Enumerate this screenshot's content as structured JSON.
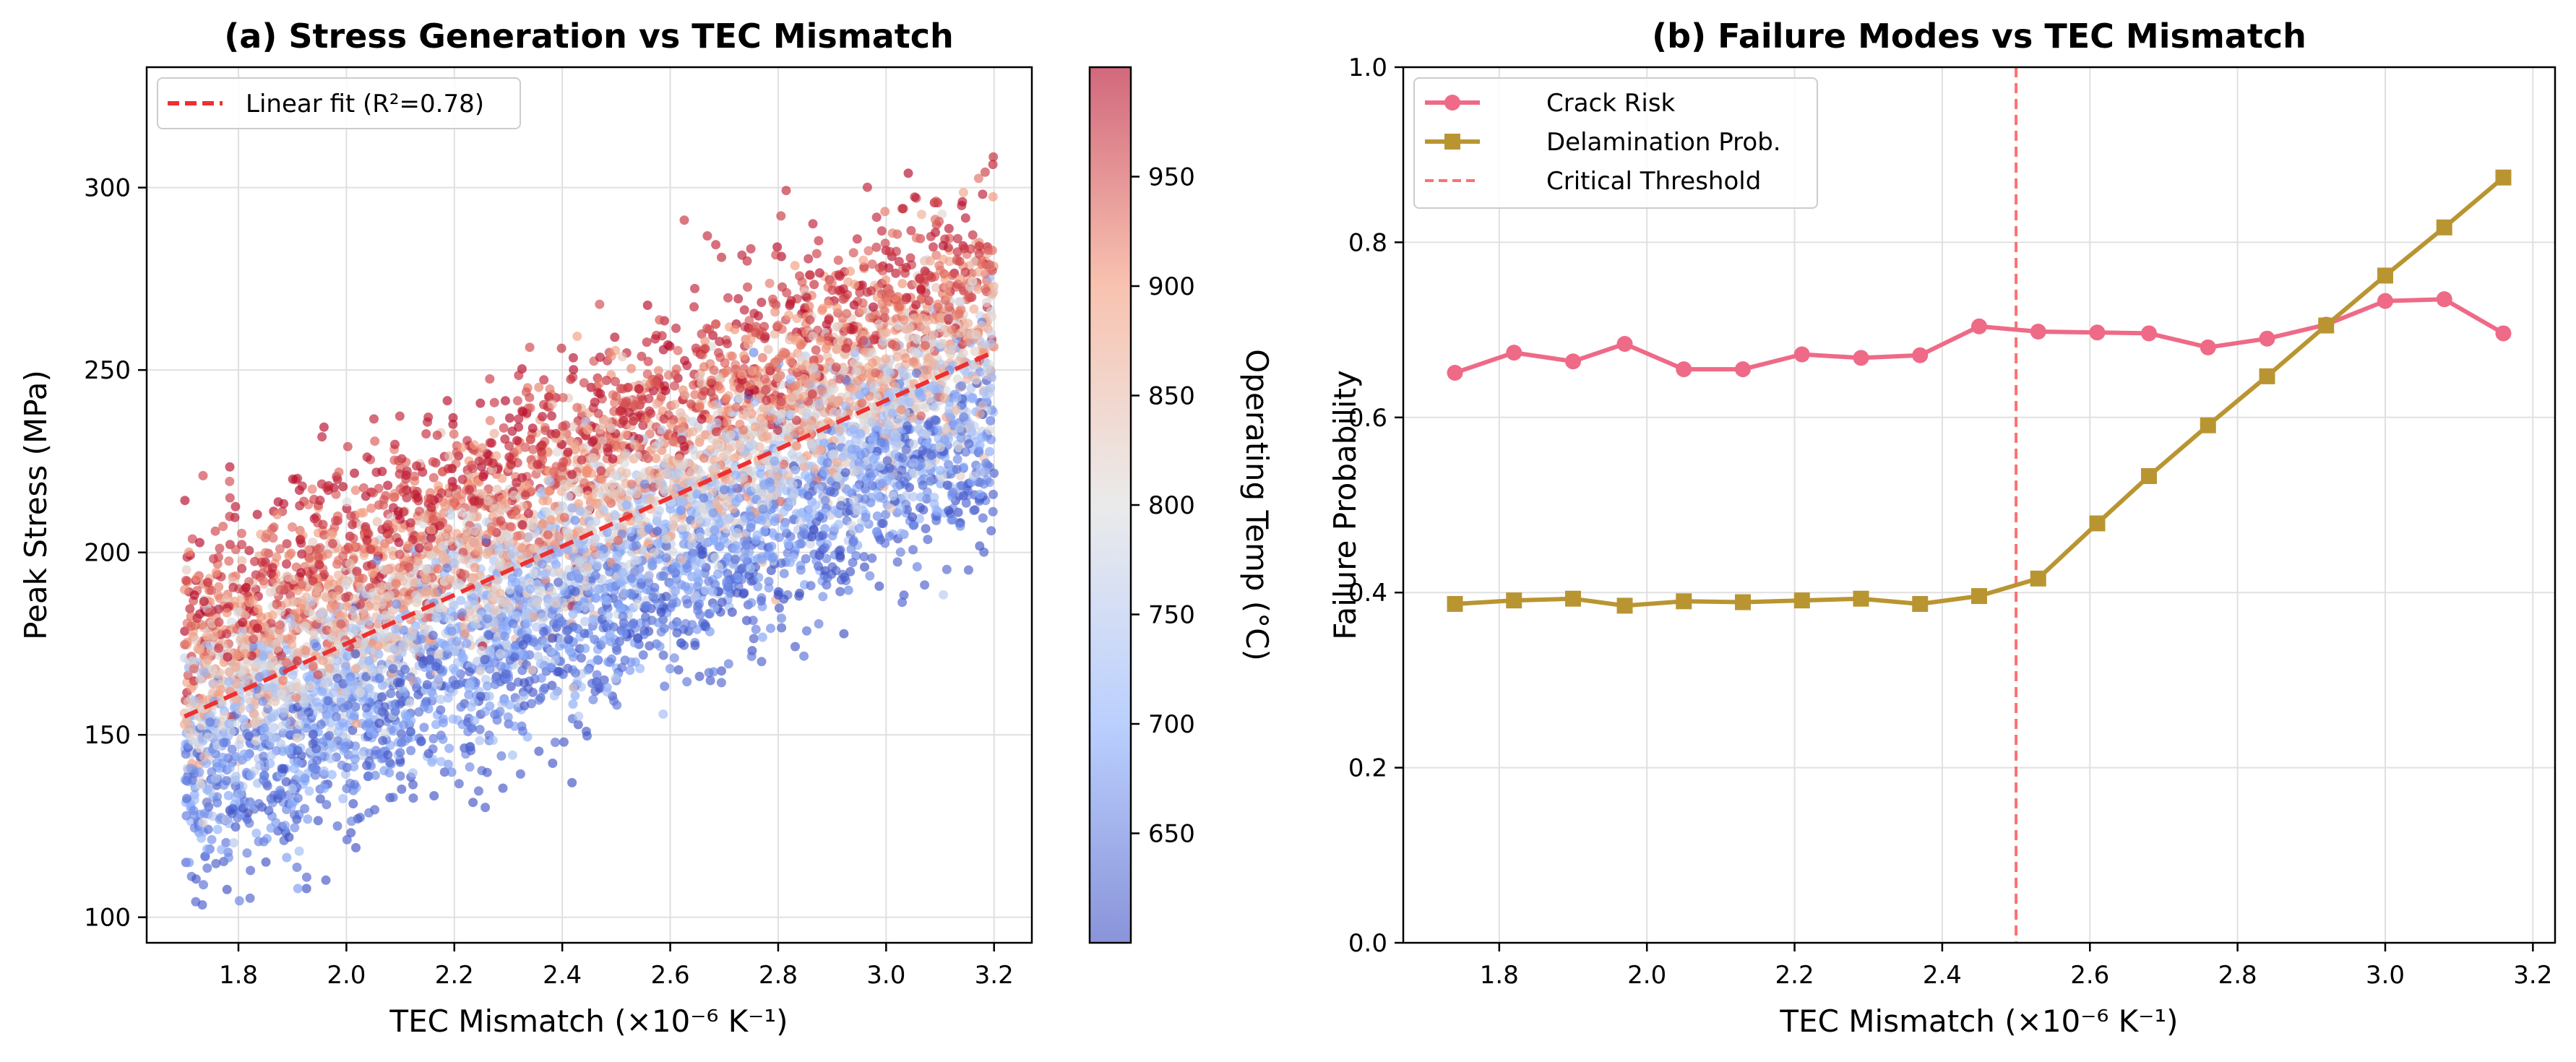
{
  "colors": {
    "fit_line": "#ee3030",
    "crack": "#ee6a86",
    "delam": "#b99532",
    "threshold": "#ff7070",
    "grid": "#e0e0e0",
    "colormap": "coolwarm"
  },
  "chart_data": [
    {
      "type": "scatter",
      "title": "(a) Stress Generation vs TEC Mismatch",
      "xlabel": "TEC Mismatch (×10⁻⁶ K⁻¹)",
      "ylabel": "Peak Stress (MPa)",
      "xlim": [
        1.63,
        3.27
      ],
      "ylim": [
        93,
        333
      ],
      "xticks": [
        "1.8",
        "2.0",
        "2.2",
        "2.4",
        "2.6",
        "2.8",
        "3.0",
        "3.2"
      ],
      "xtick_values": [
        1.8,
        2.0,
        2.2,
        2.4,
        2.6,
        2.8,
        3.0,
        3.2
      ],
      "yticks": [
        "100",
        "150",
        "200",
        "250",
        "300"
      ],
      "ytick_values": [
        100,
        150,
        200,
        250,
        300
      ],
      "grid": true,
      "legend_position": "top-left",
      "fit": {
        "label": "Linear fit (R²=0.78)",
        "x": [
          1.7,
          3.2
        ],
        "y": [
          155,
          255
        ]
      },
      "scatter_model": {
        "n_points": 7000,
        "x_range": [
          1.7,
          3.2
        ],
        "temp_range": [
          600,
          1000
        ],
        "stress_at_x_1_7_temp_800": 155,
        "stress_slope_per_unit_x": 66.7,
        "stress_slope_per_deg_temp": 0.16,
        "noise_sd": 13
      },
      "colorbar": {
        "label": "Operating Temp (°C)",
        "range": [
          600,
          1000
        ],
        "ticks": [
          "650",
          "700",
          "750",
          "800",
          "850",
          "900",
          "950"
        ],
        "tick_values": [
          650,
          700,
          750,
          800,
          850,
          900,
          950
        ]
      }
    },
    {
      "type": "line",
      "title": "(b) Failure Modes vs TEC Mismatch",
      "xlabel": "TEC Mismatch (×10⁻⁶ K⁻¹)",
      "ylabel": "Failure Probability",
      "xlim": [
        1.67,
        3.23
      ],
      "ylim": [
        0.0,
        1.0
      ],
      "xticks": [
        "1.8",
        "2.0",
        "2.2",
        "2.4",
        "2.6",
        "2.8",
        "3.0",
        "3.2"
      ],
      "xtick_values": [
        1.8,
        2.0,
        2.2,
        2.4,
        2.6,
        2.8,
        3.0,
        3.2
      ],
      "yticks": [
        "0.0",
        "0.2",
        "0.4",
        "0.6",
        "0.8",
        "1.0"
      ],
      "ytick_values": [
        0.0,
        0.2,
        0.4,
        0.6,
        0.8,
        1.0
      ],
      "grid": true,
      "legend_position": "top-left",
      "x": [
        1.74,
        1.82,
        1.9,
        1.97,
        2.05,
        2.13,
        2.21,
        2.29,
        2.37,
        2.45,
        2.53,
        2.61,
        2.68,
        2.76,
        2.84,
        2.92,
        3.0,
        3.08,
        3.16
      ],
      "series": [
        {
          "name": "Crack Risk",
          "marker": "circle",
          "values": [
            0.651,
            0.674,
            0.664,
            0.684,
            0.655,
            0.655,
            0.672,
            0.668,
            0.671,
            0.704,
            0.698,
            0.697,
            0.696,
            0.68,
            0.69,
            0.706,
            0.733,
            0.735,
            0.696
          ]
        },
        {
          "name": "Delamination Prob.",
          "marker": "square",
          "values": [
            0.387,
            0.391,
            0.393,
            0.385,
            0.39,
            0.389,
            0.391,
            0.393,
            0.387,
            0.396,
            0.416,
            0.479,
            0.533,
            0.591,
            0.647,
            0.705,
            0.762,
            0.817,
            0.874
          ]
        }
      ],
      "threshold": {
        "name": "Critical Threshold",
        "x": 2.5
      }
    }
  ]
}
